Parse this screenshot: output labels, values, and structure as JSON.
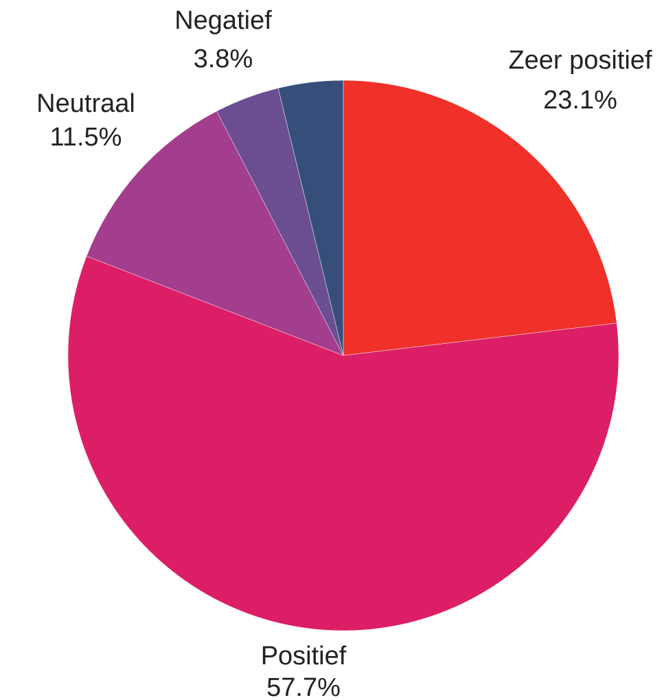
{
  "chart_data": {
    "type": "pie",
    "categories": [
      "Zeer positief",
      "Positief",
      "Neutraal",
      "Negatief",
      null
    ],
    "values": [
      23.1,
      57.7,
      11.5,
      3.8,
      3.8
    ],
    "value_labels": [
      "23.1%",
      "57.7%",
      "11.5%",
      "3.8%",
      null
    ],
    "colors": [
      "#ef3129",
      "#dc1e66",
      "#a33d8d",
      "#6a4e91",
      "#364f7a"
    ]
  }
}
